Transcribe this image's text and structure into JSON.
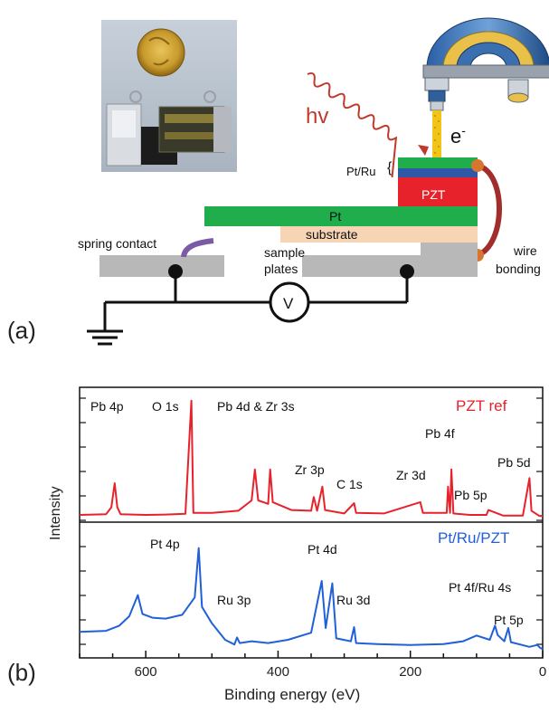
{
  "panel_a": {
    "label": "(a)",
    "beam_label": "hv",
    "electron_label": "e",
    "electron_superscript": "-",
    "layer_pt_ru": "Pt/Ru",
    "layer_pzt": "PZT",
    "layer_pt": "Pt",
    "layer_substrate": "substrate",
    "spring_contact": "spring contact",
    "sample_plates_line1": "sample",
    "sample_plates_line2": "plates",
    "voltmeter": "V",
    "wire_bonding_line1": "wire",
    "wire_bonding_line2": "bonding",
    "colors": {
      "beam": "#c0392b",
      "pt_layer": "#1fae4b",
      "ru_layer": "#2d59a8",
      "pzt_layer": "#e8222a",
      "substrate": "#f7d4b4",
      "plates": "#b8b8b8",
      "wire": "#a12d2d",
      "bond_dots": "#d8752f",
      "spring": "#7b5aa6",
      "emission": "#f0c419"
    }
  },
  "panel_b": {
    "label": "(b)",
    "xlabel": "Binding energy (eV)",
    "ylabel": "Intensity",
    "tick_labels": [
      "600",
      "400",
      "200",
      "0"
    ]
  },
  "chart_data": {
    "type": "line",
    "xlabel": "Binding energy (eV)",
    "ylabel": "Intensity",
    "xlim": [
      700,
      0
    ],
    "x_reversed": true,
    "x_ticks": [
      600,
      400,
      200,
      0
    ],
    "y_ticks_shown": false,
    "series": [
      {
        "name": "PZT ref",
        "color": "#e8222a",
        "points": [
          [
            700,
            8
          ],
          [
            660,
            10
          ],
          [
            652,
            30
          ],
          [
            647,
            100
          ],
          [
            643,
            30
          ],
          [
            638,
            10
          ],
          [
            600,
            8
          ],
          [
            570,
            9
          ],
          [
            540,
            11
          ],
          [
            531,
            340
          ],
          [
            528,
            14
          ],
          [
            500,
            14
          ],
          [
            460,
            20
          ],
          [
            440,
            50
          ],
          [
            435,
            140
          ],
          [
            430,
            50
          ],
          [
            415,
            40
          ],
          [
            412,
            140
          ],
          [
            408,
            45
          ],
          [
            380,
            22
          ],
          [
            350,
            20
          ],
          [
            346,
            60
          ],
          [
            341,
            20
          ],
          [
            333,
            90
          ],
          [
            329,
            22
          ],
          [
            300,
            12
          ],
          [
            285,
            42
          ],
          [
            282,
            14
          ],
          [
            240,
            12
          ],
          [
            185,
            45
          ],
          [
            181,
            14
          ],
          [
            145,
            14
          ],
          [
            143,
            90
          ],
          [
            140,
            14
          ],
          [
            138,
            140
          ],
          [
            135,
            12
          ],
          [
            110,
            8
          ],
          [
            85,
            8
          ],
          [
            82,
            22
          ],
          [
            60,
            6
          ],
          [
            30,
            6
          ],
          [
            20,
            115
          ],
          [
            17,
            20
          ],
          [
            5,
            5
          ],
          [
            0,
            5
          ]
        ]
      },
      {
        "name": "Pt/Ru/PZT",
        "color": "#2060d8",
        "points": [
          [
            700,
            42
          ],
          [
            660,
            44
          ],
          [
            640,
            55
          ],
          [
            625,
            75
          ],
          [
            612,
            120
          ],
          [
            605,
            80
          ],
          [
            590,
            72
          ],
          [
            570,
            70
          ],
          [
            545,
            78
          ],
          [
            526,
            115
          ],
          [
            520,
            220
          ],
          [
            515,
            95
          ],
          [
            500,
            60
          ],
          [
            480,
            25
          ],
          [
            466,
            15
          ],
          [
            462,
            30
          ],
          [
            458,
            18
          ],
          [
            440,
            22
          ],
          [
            415,
            18
          ],
          [
            385,
            25
          ],
          [
            350,
            40
          ],
          [
            334,
            150
          ],
          [
            328,
            50
          ],
          [
            318,
            145
          ],
          [
            312,
            28
          ],
          [
            290,
            22
          ],
          [
            285,
            52
          ],
          [
            282,
            18
          ],
          [
            250,
            16
          ],
          [
            200,
            14
          ],
          [
            150,
            16
          ],
          [
            120,
            22
          ],
          [
            100,
            34
          ],
          [
            80,
            25
          ],
          [
            72,
            55
          ],
          [
            68,
            35
          ],
          [
            58,
            22
          ],
          [
            52,
            50
          ],
          [
            48,
            20
          ],
          [
            20,
            10
          ],
          [
            8,
            14
          ],
          [
            4,
            8
          ],
          [
            0,
            5
          ]
        ]
      }
    ],
    "annotations": [
      {
        "text": "Pb 4p",
        "series": "PZT ref"
      },
      {
        "text": "O 1s",
        "series": "PZT ref"
      },
      {
        "text": "Pb 4d & Zr 3s",
        "series": "PZT ref"
      },
      {
        "text": "Zr 3p",
        "series": "PZT ref"
      },
      {
        "text": "C 1s",
        "series": "PZT ref"
      },
      {
        "text": "Zr 3d",
        "series": "PZT ref"
      },
      {
        "text": "Pb 4f",
        "series": "PZT ref"
      },
      {
        "text": "Pb 5p",
        "series": "PZT ref"
      },
      {
        "text": "Pb 5d",
        "series": "PZT ref"
      },
      {
        "text": "Pt 4p",
        "series": "Pt/Ru/PZT"
      },
      {
        "text": "Ru 3p",
        "series": "Pt/Ru/PZT"
      },
      {
        "text": "Pt 4d",
        "series": "Pt/Ru/PZT"
      },
      {
        "text": "Ru 3d",
        "series": "Pt/Ru/PZT"
      },
      {
        "text": "Pt 4f/Ru 4s",
        "series": "Pt/Ru/PZT"
      },
      {
        "text": "Pt 5p",
        "series": "Pt/Ru/PZT"
      }
    ]
  }
}
